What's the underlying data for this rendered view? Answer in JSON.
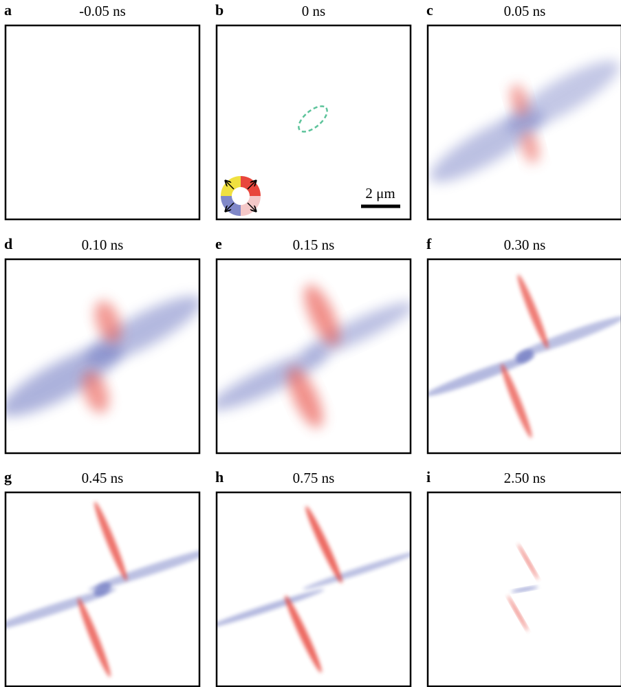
{
  "panels": [
    {
      "letter": "a",
      "title": "-0.05 ns"
    },
    {
      "letter": "b",
      "title": "0 ns"
    },
    {
      "letter": "c",
      "title": "0.05 ns"
    },
    {
      "letter": "d",
      "title": "0.10 ns"
    },
    {
      "letter": "e",
      "title": "0.15 ns"
    },
    {
      "letter": "f",
      "title": "0.30 ns"
    },
    {
      "letter": "g",
      "title": "0.45 ns"
    },
    {
      "letter": "h",
      "title": "0.75 ns"
    },
    {
      "letter": "i",
      "title": "2.50 ns"
    }
  ],
  "scale_bar": {
    "label": "2 μm"
  }
}
